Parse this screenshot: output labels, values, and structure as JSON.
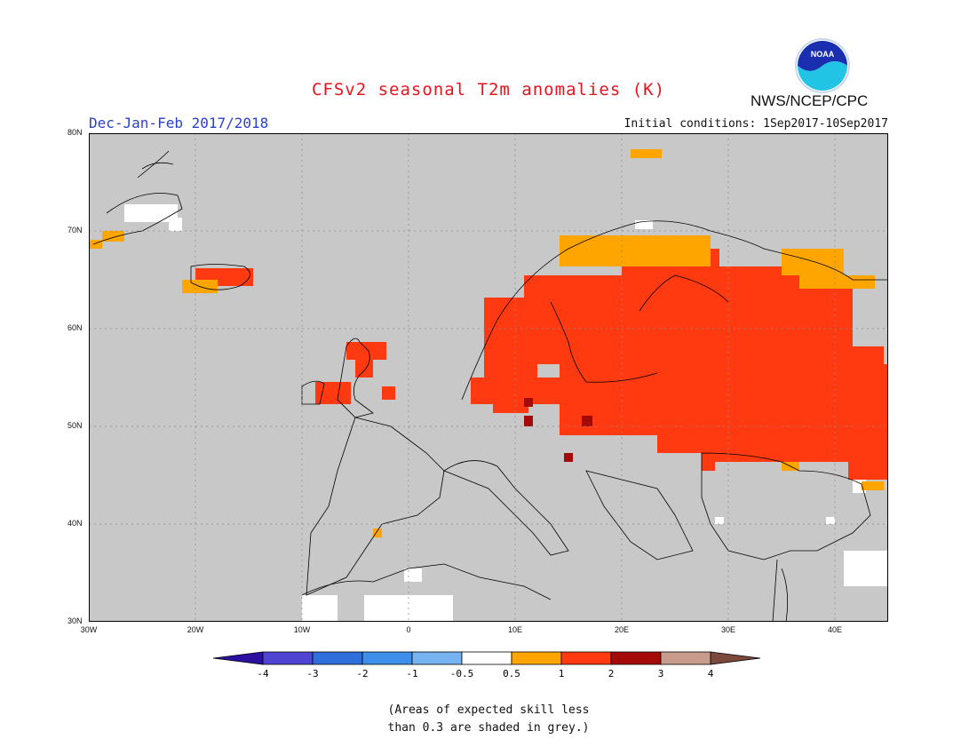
{
  "header": {
    "title": "CFSv2 seasonal T2m anomalies (K)",
    "agency": "NWS/NCEP/CPC",
    "season": "Dec-Jan-Feb 2017/2018",
    "initial_conditions": "Initial conditions: 1Sep2017-10Sep2017",
    "logo_text": "NOAA"
  },
  "map": {
    "lon_range": [
      -30,
      45
    ],
    "lat_range": [
      30,
      80
    ],
    "lon_ticks": [
      "30W",
      "20W",
      "10W",
      "0",
      "10E",
      "20E",
      "30E",
      "40E"
    ],
    "lat_ticks": [
      "80N",
      "70N",
      "60N",
      "50N",
      "40N",
      "30N"
    ],
    "background": "#c8c8c8"
  },
  "colorbar": {
    "labels": [
      "-4",
      "-3",
      "-2",
      "-1",
      "-0.5",
      "0.5",
      "1",
      "2",
      "3",
      "4"
    ],
    "colors": [
      "#2b0f9e",
      "#4f43d2",
      "#2e6fdb",
      "#3d8fea",
      "#78b3f1",
      "#ffffff",
      "#ffa500",
      "#ff3a10",
      "#a50a0a",
      "#c89c8c",
      "#7b4a3c"
    ]
  },
  "note": {
    "line1": "(Areas of expected skill less",
    "line2": "than 0.3 are shaded in grey.)"
  }
}
